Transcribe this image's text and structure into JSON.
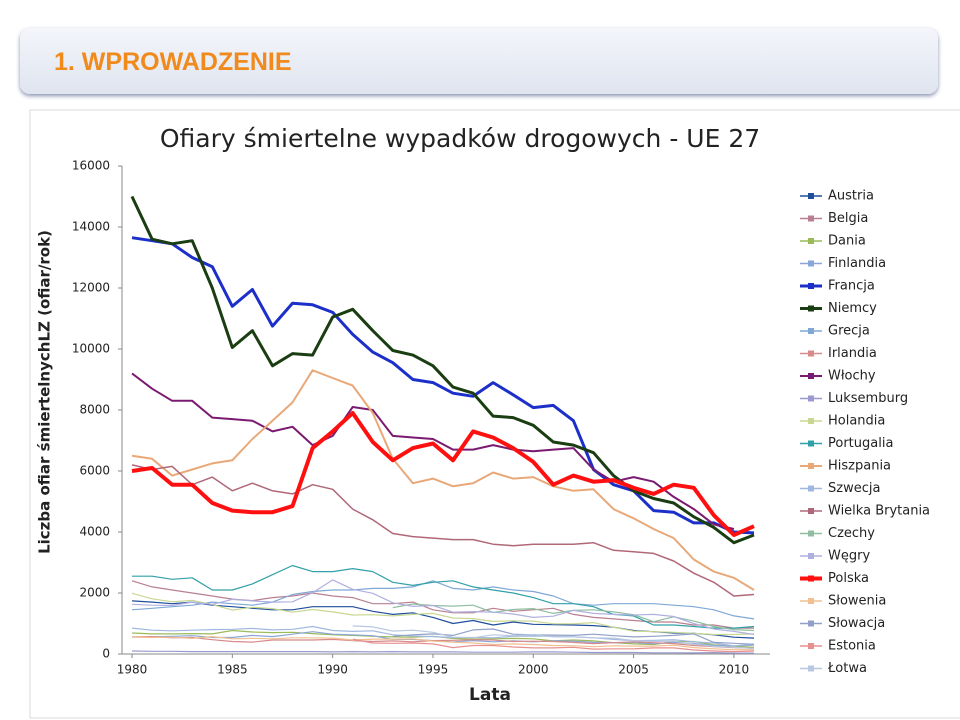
{
  "header": {
    "title": "1. WPROWADZENIE"
  },
  "chart_data": {
    "type": "line",
    "title": "Ofiary śmiertelne wypadków drogowych - UE 27",
    "x_label": "Lata",
    "y_label": "Liczba ofiar śmiertelnychLZ (ofiar/rok)",
    "x": [
      1980,
      1981,
      1982,
      1983,
      1984,
      1985,
      1986,
      1987,
      1988,
      1989,
      1990,
      1991,
      1992,
      1993,
      1994,
      1995,
      1996,
      1997,
      1998,
      1999,
      2000,
      2001,
      2002,
      2003,
      2004,
      2005,
      2006,
      2007,
      2008,
      2009,
      2010,
      2011
    ],
    "xlim": [
      1979.5,
      2011.8
    ],
    "xticks": [
      1980,
      1985,
      1990,
      1995,
      2000,
      2005,
      2010
    ],
    "ylim": [
      0,
      16000
    ],
    "yticks": [
      0,
      2000,
      4000,
      6000,
      8000,
      10000,
      12000,
      14000,
      16000
    ],
    "series": [
      {
        "name": "Austria",
        "color": "#1f4e9c",
        "values": [
          1740,
          1700,
          1650,
          1700,
          1600,
          1550,
          1500,
          1450,
          1450,
          1550,
          1550,
          1550,
          1400,
          1300,
          1350,
          1200,
          1000,
          1100,
          950,
          1050,
          975,
          960,
          950,
          930,
          880,
          770,
          730,
          690,
          680,
          630,
          550,
          520
        ]
      },
      {
        "name": "Belgia",
        "color": "#b88090",
        "values": [
          2400,
          2200,
          2100,
          2000,
          1900,
          1800,
          1750,
          1850,
          1900,
          2000,
          1900,
          1850,
          1650,
          1650,
          1700,
          1450,
          1350,
          1350,
          1500,
          1400,
          1450,
          1500,
          1300,
          1200,
          1150,
          1100,
          1050,
          1050,
          950,
          950,
          850,
          850
        ]
      },
      {
        "name": "Dania",
        "color": "#9bbb59",
        "values": [
          690,
          660,
          660,
          670,
          660,
          770,
          720,
          700,
          710,
          670,
          630,
          610,
          580,
          560,
          550,
          580,
          510,
          490,
          500,
          510,
          500,
          430,
          460,
          430,
          370,
          330,
          310,
          410,
          410,
          300,
          260,
          220
        ]
      },
      {
        "name": "Finlandia",
        "color": "#8aa6d8",
        "values": [
          550,
          560,
          580,
          600,
          540,
          540,
          610,
          570,
          650,
          730,
          650,
          630,
          600,
          480,
          480,
          440,
          400,
          440,
          400,
          430,
          400,
          430,
          420,
          380,
          375,
          380,
          335,
          380,
          345,
          280,
          270,
          290
        ]
      },
      {
        "name": "Francja",
        "color": "#1c2fc9",
        "line_width": 3,
        "values": [
          13650,
          13550,
          13450,
          13000,
          12700,
          11400,
          11950,
          10750,
          11500,
          11450,
          11200,
          10480,
          9900,
          9550,
          9000,
          8900,
          8550,
          8450,
          8900,
          8500,
          8080,
          8150,
          7650,
          6050,
          5550,
          5350,
          4700,
          4650,
          4300,
          4300,
          4000,
          3970
        ]
      },
      {
        "name": "Niemcy",
        "color": "#1a3d12",
        "line_width": 3,
        "values": [
          15000,
          13600,
          13450,
          13550,
          12000,
          10050,
          10600,
          9450,
          9850,
          9800,
          11050,
          11300,
          10600,
          9950,
          9800,
          9450,
          8750,
          8550,
          7800,
          7750,
          7500,
          6950,
          6850,
          6600,
          5850,
          5350,
          5100,
          4950,
          4500,
          4150,
          3650,
          3900
        ]
      },
      {
        "name": "Grecja",
        "color": "#7fa8d6",
        "values": [
          1450,
          1500,
          1550,
          1600,
          1700,
          1650,
          1600,
          1700,
          1950,
          2050,
          2100,
          2100,
          2150,
          2150,
          2200,
          2400,
          2150,
          2100,
          2200,
          2100,
          2050,
          1900,
          1650,
          1600,
          1650,
          1650,
          1650,
          1600,
          1550,
          1450,
          1250,
          1150
        ]
      },
      {
        "name": "Irlandia",
        "color": "#d88a8a",
        "values": [
          560,
          570,
          530,
          540,
          470,
          410,
          390,
          460,
          460,
          460,
          480,
          440,
          410,
          430,
          400,
          440,
          450,
          470,
          460,
          410,
          420,
          410,
          380,
          340,
          370,
          400,
          370,
          340,
          280,
          240,
          210,
          190
        ]
      },
      {
        "name": "Włochy",
        "color": "#7a1a70",
        "line_width": 2,
        "values": [
          9200,
          8700,
          8300,
          8300,
          7750,
          7700,
          7650,
          7300,
          7450,
          6850,
          7150,
          8100,
          8000,
          7150,
          7100,
          7050,
          6700,
          6700,
          6850,
          6700,
          6650,
          6700,
          6750,
          6050,
          5650,
          5800,
          5650,
          5150,
          4750,
          4250,
          4100,
          null
        ]
      },
      {
        "name": "Luksemburg",
        "color": "#9a9ad0",
        "values": [
          100,
          90,
          90,
          80,
          80,
          80,
          80,
          80,
          80,
          80,
          70,
          80,
          70,
          80,
          70,
          70,
          70,
          60,
          60,
          60,
          70,
          70,
          60,
          50,
          50,
          50,
          40,
          40,
          35,
          45,
          30,
          30
        ]
      },
      {
        "name": "Holandia",
        "color": "#c8d890",
        "values": [
          1990,
          1810,
          1710,
          1760,
          1620,
          1440,
          1530,
          1490,
          1370,
          1460,
          1380,
          1280,
          1290,
          1250,
          1300,
          1330,
          1180,
          1160,
          1070,
          1090,
          1080,
          990,
          990,
          1030,
          880,
          750,
          730,
          710,
          680,
          640,
          640,
          660
        ]
      },
      {
        "name": "Portugalia",
        "color": "#31a0a8",
        "values": [
          2550,
          2550,
          2450,
          2500,
          2100,
          2100,
          2300,
          2600,
          2900,
          2700,
          2700,
          2800,
          2700,
          2350,
          2250,
          2350,
          2400,
          2200,
          2100,
          2000,
          1850,
          1650,
          1650,
          1550,
          1300,
          1250,
          950,
          950,
          900,
          850,
          850,
          900
        ]
      },
      {
        "name": "Hiszpania",
        "color": "#e8a878",
        "line_width": 2,
        "values": [
          6500,
          6400,
          5850,
          6050,
          6250,
          6350,
          7050,
          7650,
          8250,
          9300,
          9050,
          8800,
          7900,
          6400,
          5600,
          5750,
          5500,
          5600,
          5950,
          5750,
          5800,
          5500,
          5350,
          5400,
          4750,
          4450,
          4100,
          3800,
          3100,
          2700,
          2500,
          2100
        ]
      },
      {
        "name": "Szwecja",
        "color": "#a0b8e0",
        "values": [
          850,
          780,
          760,
          780,
          800,
          810,
          840,
          790,
          810,
          900,
          770,
          740,
          760,
          630,
          590,
          570,
          540,
          540,
          530,
          580,
          590,
          580,
          560,
          530,
          480,
          440,
          450,
          470,
          400,
          360,
          270,
          320
        ]
      },
      {
        "name": "Wielka Brytania",
        "color": "#b06878",
        "line_width": 1.5,
        "values": [
          6200,
          6050,
          6150,
          5550,
          5800,
          5350,
          5600,
          5350,
          5250,
          5550,
          5400,
          4750,
          4400,
          3950,
          3850,
          3800,
          3750,
          3750,
          3600,
          3550,
          3600,
          3600,
          3600,
          3650,
          3400,
          3350,
          3300,
          3050,
          2650,
          2350,
          1900,
          1950
        ]
      },
      {
        "name": "Czechy",
        "color": "#8fbfa0",
        "values": [
          null,
          null,
          null,
          null,
          null,
          null,
          null,
          null,
          null,
          null,
          null,
          null,
          null,
          1520,
          1640,
          1590,
          1570,
          1600,
          1360,
          1460,
          1490,
          1330,
          1430,
          1450,
          1380,
          1290,
          1060,
          1220,
          1080,
          900,
          800,
          770
        ]
      },
      {
        "name": "Węgry",
        "color": "#b0b0e0",
        "values": [
          1630,
          1600,
          1590,
          1700,
          1630,
          1790,
          1740,
          1700,
          1710,
          2010,
          2430,
          2120,
          1990,
          1680,
          1560,
          1590,
          1370,
          1390,
          1370,
          1310,
          1200,
          1240,
          1430,
          1330,
          1300,
          1280,
          1300,
          1230,
          1000,
          820,
          740,
          640
        ]
      },
      {
        "name": "Polska",
        "color": "#ff1010",
        "line_width": 4,
        "values": [
          6000,
          6100,
          5550,
          5550,
          4950,
          4700,
          4650,
          4650,
          4850,
          6750,
          7300,
          7900,
          6950,
          6350,
          6750,
          6900,
          6350,
          7300,
          7100,
          6750,
          6300,
          5550,
          5850,
          5650,
          5700,
          5450,
          5250,
          5550,
          5450,
          4550,
          3900,
          4190
        ]
      },
      {
        "name": "Słowenia",
        "color": "#f0c090",
        "values": [
          560,
          540,
          550,
          510,
          570,
          500,
          510,
          500,
          530,
          530,
          520,
          460,
          490,
          490,
          500,
          420,
          390,
          360,
          310,
          330,
          310,
          280,
          270,
          240,
          270,
          260,
          260,
          290,
          210,
          170,
          140,
          140
        ]
      },
      {
        "name": "Słowacja",
        "color": "#90a0c8",
        "values": [
          null,
          null,
          null,
          null,
          null,
          null,
          null,
          null,
          null,
          null,
          null,
          null,
          null,
          580,
          630,
          660,
          610,
          790,
          820,
          650,
          630,
          620,
          610,
          650,
          600,
          560,
          580,
          610,
          660,
          380,
          350,
          320
        ]
      },
      {
        "name": "Estonia",
        "color": "#e89090",
        "values": [
          null,
          null,
          null,
          null,
          null,
          null,
          null,
          null,
          null,
          null,
          null,
          490,
          360,
          350,
          360,
          330,
          210,
          280,
          280,
          230,
          200,
          200,
          220,
          160,
          170,
          170,
          200,
          200,
          130,
          100,
          80,
          100
        ]
      },
      {
        "name": "Łotwa",
        "color": "#b8c8e0",
        "values": [
          null,
          null,
          null,
          null,
          null,
          null,
          null,
          null,
          null,
          null,
          null,
          920,
          890,
          750,
          780,
          710,
          550,
          530,
          630,
          600,
          640,
          560,
          560,
          530,
          520,
          440,
          410,
          420,
          320,
          250,
          220,
          180
        ]
      }
    ]
  }
}
